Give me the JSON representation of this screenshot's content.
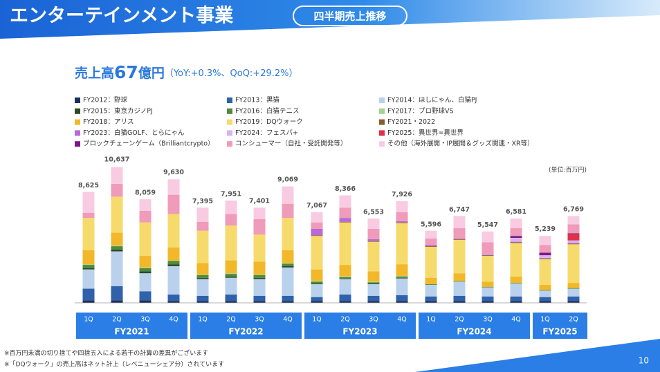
{
  "header": {
    "title": "エンターテインメント事業",
    "tag": "四半期売上推移"
  },
  "chart_data": {
    "type": "stacked_bar",
    "headline": {
      "prefix": "売上高",
      "amount": "67",
      "unit": "億円",
      "note": "（YoY:+0.3%、QoQ:+29.2%）"
    },
    "unit_label": "(単位:百万円)",
    "groups": [
      {
        "label": "FY2021",
        "quarters": [
          "1Q",
          "2Q",
          "3Q",
          "4Q"
        ]
      },
      {
        "label": "FY2022",
        "quarters": [
          "1Q",
          "2Q",
          "3Q",
          "4Q"
        ]
      },
      {
        "label": "FY2023",
        "quarters": [
          "1Q",
          "2Q",
          "3Q",
          "4Q"
        ]
      },
      {
        "label": "FY2024",
        "quarters": [
          "1Q",
          "2Q",
          "3Q",
          "4Q"
        ]
      },
      {
        "label": "FY2025",
        "quarters": [
          "1Q",
          "2Q"
        ]
      }
    ],
    "series": [
      {
        "name": "FY2012：野球",
        "color": "#1b2f5c",
        "values": [
          200,
          200,
          200,
          150,
          150,
          150,
          150,
          150,
          150,
          150,
          150,
          150,
          150,
          150,
          150,
          150,
          150,
          150
        ]
      },
      {
        "name": "FY2013：黒猫",
        "color": "#2f62ab",
        "values": [
          900,
          1100,
          700,
          500,
          400,
          500,
          400,
          400,
          300,
          500,
          400,
          450,
          350,
          400,
          350,
          350,
          300,
          350
        ]
      },
      {
        "name": "FY2014：ほしにゃん、白猫PJ",
        "color": "#b9d1ec",
        "values": [
          1500,
          2700,
          1400,
          2200,
          1300,
          1300,
          1300,
          2200,
          1000,
          1200,
          900,
          1300,
          900,
          1100,
          700,
          1000,
          500,
          600
        ]
      },
      {
        "name": "FY2015：東京カジノPJ",
        "color": "#2c4a20",
        "values": [
          100,
          150,
          150,
          150,
          100,
          100,
          100,
          100,
          50,
          50,
          50,
          50,
          0,
          0,
          0,
          0,
          0,
          0
        ]
      },
      {
        "name": "FY2016：白猫テニス",
        "color": "#4f8a3a",
        "values": [
          250,
          250,
          250,
          250,
          200,
          200,
          200,
          200,
          150,
          100,
          100,
          100,
          50,
          50,
          50,
          50,
          50,
          50
        ]
      },
      {
        "name": "FY2017：プロ野球VS",
        "color": "#a3d48e",
        "values": [
          50,
          50,
          50,
          50,
          50,
          50,
          50,
          50,
          50,
          50,
          50,
          50,
          0,
          0,
          0,
          0,
          0,
          0
        ]
      },
      {
        "name": "FY2018：アリス",
        "color": "#f2b82a",
        "values": [
          1100,
          1000,
          900,
          1000,
          900,
          1000,
          1000,
          1000,
          900,
          900,
          800,
          900,
          500,
          600,
          400,
          500,
          400,
          400
        ]
      },
      {
        "name": "FY2019：DQウォーク",
        "color": "#f7da6c",
        "values": [
          2500,
          2800,
          2600,
          2600,
          2500,
          2700,
          2100,
          2500,
          2600,
          3300,
          2300,
          3200,
          2400,
          2600,
          2000,
          2600,
          2000,
          3000
        ]
      },
      {
        "name": "FY2021・2022",
        "color": "#8a5a2a",
        "values": [
          0,
          0,
          0,
          0,
          0,
          0,
          0,
          0,
          50,
          50,
          50,
          50,
          50,
          50,
          50,
          50,
          50,
          50
        ]
      },
      {
        "name": "FY2023：白猫GOLF、とらにゃん",
        "color": "#b56ad8",
        "values": [
          0,
          0,
          0,
          0,
          0,
          0,
          0,
          0,
          500,
          300,
          150,
          100,
          100,
          50,
          50,
          50,
          50,
          50
        ]
      },
      {
        "name": "FY2024：フェスバ+",
        "color": "#d9b2f0",
        "values": [
          0,
          0,
          0,
          0,
          0,
          0,
          0,
          0,
          0,
          0,
          0,
          0,
          0,
          0,
          50,
          300,
          200,
          200
        ]
      },
      {
        "name": "FY2025：異世界∞異世界",
        "color": "#e0304a",
        "values": [
          0,
          0,
          0,
          0,
          0,
          0,
          0,
          0,
          0,
          0,
          0,
          0,
          0,
          0,
          0,
          0,
          0,
          500
        ]
      },
      {
        "name": "ブロックチェーンゲーム（Brilliantcrypto）",
        "color": "#7a1a8a",
        "values": [
          0,
          0,
          0,
          0,
          0,
          0,
          0,
          0,
          0,
          0,
          0,
          0,
          0,
          0,
          0,
          150,
          200,
          50
        ]
      },
      {
        "name": "コンシューマー（自社・受託開発等）",
        "color": "#ef9bb9",
        "values": [
          400,
          1000,
          900,
          1500,
          700,
          900,
          1200,
          1100,
          500,
          800,
          800,
          700,
          500,
          800,
          900,
          600,
          600,
          700
        ]
      },
      {
        "name": "その他（海外展開・IP展開＆グッズ関連・XR等）",
        "color": "#f9cbe2",
        "values": [
          1625,
          1300,
          900,
          1200,
          1100,
          1050,
          900,
          1350,
          800,
          950,
          800,
          850,
          600,
          950,
          850,
          750,
          700,
          650
        ]
      }
    ],
    "totals": {
      "values": [
        8625,
        10637,
        8059,
        9630,
        7395,
        7951,
        7401,
        9069,
        7067,
        8366,
        6553,
        7926,
        5596,
        6747,
        5547,
        6581,
        5239,
        6769
      ],
      "value_labels": [
        "8,625",
        "10,637",
        "8,059",
        "9,630",
        "7,395",
        "7,951",
        "7,401",
        "9,069",
        "7,067",
        "8,366",
        "6,553",
        "7,926",
        "5,596",
        "6,747",
        "5,547",
        "6,581",
        "5,239",
        "6,769"
      ]
    }
  },
  "footnotes": [
    "※百万円未満の切り捨てや四捨五入による若干の計算の差異がございます",
    "※「DQウォーク」の売上高はネット計上（レベニューシェア分）されています"
  ],
  "page_number": "10"
}
